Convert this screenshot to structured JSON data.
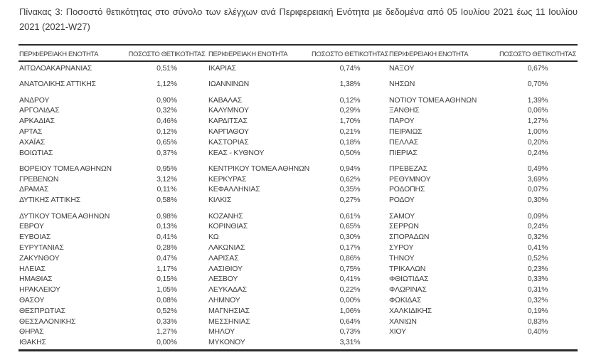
{
  "caption": "Πίνακας 3: Ποσοστό θετικότητας στο σύνολο των ελέγχων ανά Περιφερειακή Ενότητα με δεδομένα από 05 Ιουλίου 2021 έως 11 Ιουλίου 2021 (2021-W27)",
  "colors": {
    "text": "#3d3d3d",
    "rule": "#2b2b2b",
    "background": "#ffffff"
  },
  "table": {
    "headers": [
      "ΠΕΡΙΦΕΡΕΙΑΚΗ ΕΝΟΤΗΤΑ",
      "ΠΟΣΟΣΤΟ ΘΕΤΙΚΟΤΗΤΑΣ",
      "ΠΕΡΙΦΕΡΕΙΑΚΗ ΕΝΟΤΗΤΑ",
      "ΠΟΣΟΣΤΟ ΘΕΤΙΚΟΤΗΤΑΣ",
      "ΠΕΡΙΦΕΡΕΙΑΚΗ ΕΝΟΤΗΤΑ",
      "ΠΟΣΟΣΤΟ ΘΕΤΙΚΟΤΗΤΑΣ"
    ],
    "rows": [
      [
        "ΑΙΤΩΛΟΑΚΑΡΝΑΝΙΑΣ",
        "0,51%",
        "ΙΚΑΡΙΑΣ",
        "0,74%",
        "ΝΑΞΟΥ",
        "0,67%"
      ],
      [
        "ΑΝΑΤΟΛΙΚΗΣ ΑΤΤΙΚΗΣ",
        "1,12%",
        "ΙΩΑΝΝΙΝΩΝ",
        "1,38%",
        "ΝΗΣΩΝ",
        "0,70%"
      ],
      [
        "ΑΝΔΡΟΥ",
        "0,90%",
        "ΚΑΒΑΛΑΣ",
        "0,12%",
        "ΝΟΤΙΟΥ ΤΟΜΕΑ ΑΘΗΝΩΝ",
        "1,39%"
      ],
      [
        "ΑΡΓΟΛΙΔΑΣ",
        "0,32%",
        "ΚΑΛΥΜΝΟΥ",
        "0,29%",
        "ΞΑΝΘΗΣ",
        "0,06%"
      ],
      [
        "ΑΡΚΑΔΙΑΣ",
        "0,46%",
        "ΚΑΡΔΙΤΣΑΣ",
        "1,70%",
        "ΠΑΡΟΥ",
        "1,27%"
      ],
      [
        "ΑΡΤΑΣ",
        "0,12%",
        "ΚΑΡΠΑΘΟΥ",
        "0,21%",
        "ΠΕΙΡΑΙΩΣ",
        "1,00%"
      ],
      [
        "ΑΧΑΪΑΣ",
        "0,65%",
        "ΚΑΣΤΟΡΙΑΣ",
        "0,18%",
        "ΠΕΛΛΑΣ",
        "0,20%"
      ],
      [
        "ΒΟΙΩΤΙΑΣ",
        "0,37%",
        "ΚΕΑΣ - ΚΥΘΝΟΥ",
        "0,50%",
        "ΠΙΕΡΙΑΣ",
        "0,24%"
      ],
      [
        "ΒΟΡΕΙΟΥ ΤΟΜΕΑ ΑΘΗΝΩΝ",
        "0,95%",
        "ΚΕΝΤΡΙΚΟΥ ΤΟΜΕΑ ΑΘΗΝΩΝ",
        "0,94%",
        "ΠΡΕΒΕΖΑΣ",
        "0,49%"
      ],
      [
        "ΓΡΕΒΕΝΩΝ",
        "3,12%",
        "ΚΕΡΚΥΡΑΣ",
        "0,62%",
        "ΡΕΘΥΜΝΟΥ",
        "3,69%"
      ],
      [
        "ΔΡΑΜΑΣ",
        "0,11%",
        "ΚΕΦΑΛΛΗΝΙΑΣ",
        "0,35%",
        "ΡΟΔΟΠΗΣ",
        "0,07%"
      ],
      [
        "ΔΥΤΙΚΗΣ ΑΤΤΙΚΗΣ",
        "0,58%",
        "ΚΙΛΚΙΣ",
        "0,27%",
        "ΡΟΔΟΥ",
        "0,30%"
      ],
      [
        "ΔΥΤΙΚΟΥ ΤΟΜΕΑ ΑΘΗΝΩΝ",
        "0,98%",
        "ΚΟΖΑΝΗΣ",
        "0,61%",
        "ΣΑΜΟΥ",
        "0,09%"
      ],
      [
        "ΕΒΡΟΥ",
        "0,13%",
        "ΚΟΡΙΝΘΙΑΣ",
        "0,65%",
        "ΣΕΡΡΩΝ",
        "0,24%"
      ],
      [
        "ΕΥΒΟΙΑΣ",
        "0,41%",
        "ΚΩ",
        "0,30%",
        "ΣΠΟΡΑΔΩΝ",
        "0,32%"
      ],
      [
        "ΕΥΡΥΤΑΝΙΑΣ",
        "0,28%",
        "ΛΑΚΩΝΙΑΣ",
        "0,17%",
        "ΣΥΡΟΥ",
        "0,41%"
      ],
      [
        "ΖΑΚΥΝΘΟΥ",
        "0,47%",
        "ΛΑΡΙΣΑΣ",
        "0,86%",
        "ΤΗΝΟΥ",
        "0,52%"
      ],
      [
        "ΗΛΕΙΑΣ",
        "1,17%",
        "ΛΑΣΙΘΙΟΥ",
        "0,75%",
        "ΤΡΙΚΑΛΩΝ",
        "0,23%"
      ],
      [
        "ΗΜΑΘΙΑΣ",
        "0,15%",
        "ΛΕΣΒΟΥ",
        "0,41%",
        "ΦΘΙΩΤΙΔΑΣ",
        "0,33%"
      ],
      [
        "ΗΡΑΚΛΕΙΟΥ",
        "1,05%",
        "ΛΕΥΚΑΔΑΣ",
        "0,22%",
        "ΦΛΩΡΙΝΑΣ",
        "0,31%"
      ],
      [
        "ΘΑΣΟΥ",
        "0,08%",
        "ΛΗΜΝΟΥ",
        "0,00%",
        "ΦΩΚΙΔΑΣ",
        "0,32%"
      ],
      [
        "ΘΕΣΠΡΩΤΙΑΣ",
        "0,52%",
        "ΜΑΓΝΗΣΙΑΣ",
        "1,06%",
        "ΧΑΛΚΙΔΙΚΗΣ",
        "0,19%"
      ],
      [
        "ΘΕΣΣΑΛΟΝΙΚΗΣ",
        "0,33%",
        "ΜΕΣΣΗΝΙΑΣ",
        "0,64%",
        "ΧΑΝΙΩΝ",
        "0,83%"
      ],
      [
        "ΘΗΡΑΣ",
        "1,27%",
        "ΜΗΛΟΥ",
        "0,73%",
        "ΧΙΟΥ",
        "0,40%"
      ],
      [
        "ΙΘΑΚΗΣ",
        "0,00%",
        "ΜΥΚΟΝΟΥ",
        "3,31%",
        "",
        ""
      ]
    ]
  }
}
